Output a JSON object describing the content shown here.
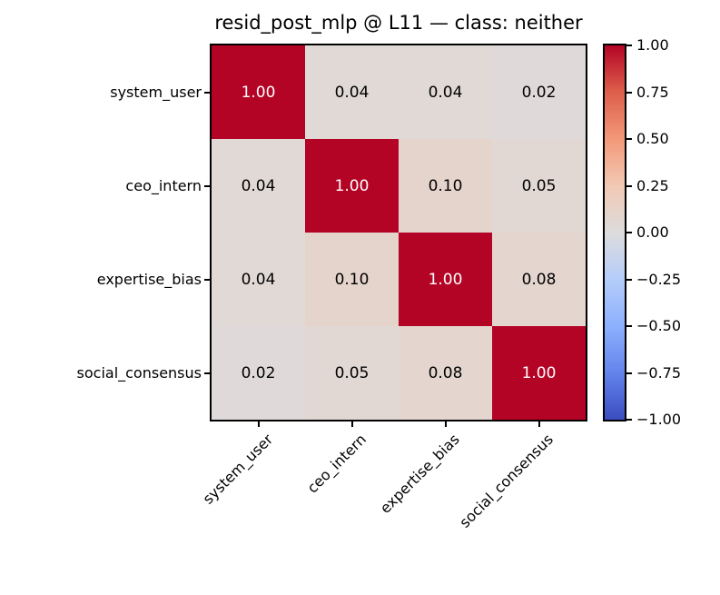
{
  "chart_data": {
    "type": "heatmap",
    "title": "resid_post_mlp @ L11 — class: neither",
    "categories": [
      "system_user",
      "ceo_intern",
      "expertise_bias",
      "social_consensus"
    ],
    "matrix": [
      [
        1.0,
        0.04,
        0.04,
        0.02
      ],
      [
        0.04,
        1.0,
        0.1,
        0.05
      ],
      [
        0.04,
        0.1,
        1.0,
        0.08
      ],
      [
        0.02,
        0.05,
        0.08,
        1.0
      ]
    ],
    "cell_labels": [
      [
        "1.00",
        "0.04",
        "0.04",
        "0.02"
      ],
      [
        "0.04",
        "1.00",
        "0.10",
        "0.05"
      ],
      [
        "0.04",
        "0.10",
        "1.00",
        "0.08"
      ],
      [
        "0.02",
        "0.05",
        "0.08",
        "1.00"
      ]
    ],
    "vmin": -1.0,
    "vmax": 1.0,
    "grid": false,
    "legend_position": "right-colorbar",
    "colorbar_ticks": [
      {
        "value": 1.0,
        "label": "1.00"
      },
      {
        "value": 0.75,
        "label": "0.75"
      },
      {
        "value": 0.5,
        "label": "0.50"
      },
      {
        "value": 0.25,
        "label": "0.25"
      },
      {
        "value": 0.0,
        "label": "0.00"
      },
      {
        "value": -0.25,
        "label": "−0.25"
      },
      {
        "value": -0.5,
        "label": "−0.50"
      },
      {
        "value": -0.75,
        "label": "−0.75"
      },
      {
        "value": -1.0,
        "label": "−1.00"
      }
    ],
    "colormap": {
      "name": "coolwarm",
      "stops": [
        {
          "t": 0.0,
          "color": "#3B4CC0"
        },
        {
          "t": 0.125,
          "color": "#6384EB"
        },
        {
          "t": 0.25,
          "color": "#8DB0FE"
        },
        {
          "t": 0.375,
          "color": "#B5CDFA"
        },
        {
          "t": 0.5,
          "color": "#DDDCDC"
        },
        {
          "t": 0.625,
          "color": "#F2C9B4"
        },
        {
          "t": 0.75,
          "color": "#F39879"
        },
        {
          "t": 0.875,
          "color": "#DD5F4B"
        },
        {
          "t": 1.0,
          "color": "#B40426"
        }
      ]
    },
    "colors": {
      "annotation_high_contrast": "#FFFFFF",
      "annotation_low_contrast": "#000000",
      "axes_edge": "#000000",
      "background": "#FFFFFF",
      "diagonal_cell": "#B40426"
    }
  }
}
